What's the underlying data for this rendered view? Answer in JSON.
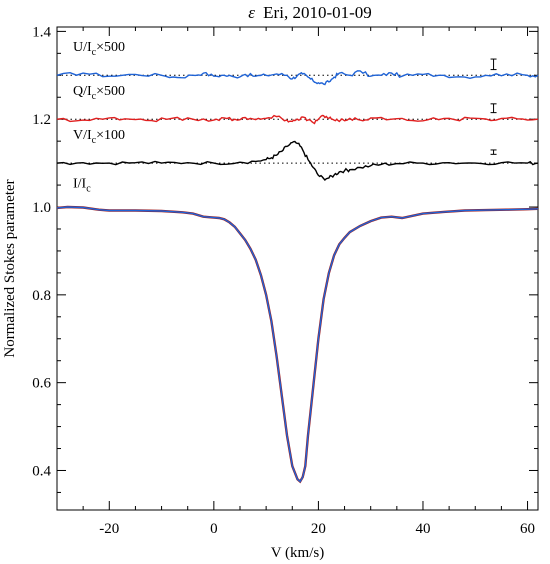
{
  "chart_data": {
    "type": "line",
    "title_symbol": "ε",
    "title_rest": "Eri, 2010-01-09",
    "xlabel": "V (km/s)",
    "ylabel": "Normalized Stokes parameter",
    "xlim": [
      -30,
      62
    ],
    "ylim": [
      0.31,
      1.41
    ],
    "x_ticks": [
      -20,
      0,
      20,
      40,
      60
    ],
    "y_ticks": [
      0.4,
      0.6,
      0.8,
      1.0,
      1.2,
      1.4
    ],
    "y_tick_labels": [
      "0.4",
      "0.6",
      "0.8",
      "1.0",
      "1.2",
      "1.4"
    ],
    "grid": false,
    "series": [
      {
        "label_main": "U/I",
        "label_sub": "c",
        "label_suffix": "×500",
        "color": "#1f63d6",
        "baseline": 1.3,
        "error_bar": {
          "x": 53.5,
          "y": 1.325,
          "half_height": 0.012
        },
        "x": [
          -30,
          -25,
          -20,
          -15,
          -10,
          -7,
          -4,
          -2,
          0,
          2,
          4,
          6,
          8,
          10,
          12,
          14,
          15,
          16,
          17,
          18,
          19,
          20,
          21,
          22,
          23,
          24,
          26,
          28,
          30,
          32,
          34,
          36,
          40,
          44,
          48,
          52,
          56,
          60,
          62
        ],
        "y": [
          1.3,
          1.305,
          1.298,
          1.302,
          1.3,
          1.295,
          1.3,
          1.305,
          1.298,
          1.3,
          1.296,
          1.302,
          1.298,
          1.3,
          1.303,
          1.3,
          1.292,
          1.3,
          1.303,
          1.296,
          1.287,
          1.283,
          1.28,
          1.285,
          1.296,
          1.305,
          1.3,
          1.31,
          1.298,
          1.3,
          1.305,
          1.298,
          1.302,
          1.3,
          1.296,
          1.3,
          1.303,
          1.3,
          1.3
        ]
      },
      {
        "label_main": "Q/I",
        "label_sub": "c",
        "label_suffix": "×500",
        "color": "#e01f1f",
        "baseline": 1.2,
        "error_bar": {
          "x": 53.5,
          "y": 1.225,
          "half_height": 0.01
        },
        "x": [
          -30,
          -25,
          -20,
          -16,
          -12,
          -8,
          -4,
          0,
          2,
          4,
          6,
          8,
          10,
          12,
          14,
          15,
          16,
          17,
          18,
          19,
          20,
          21,
          22,
          23,
          24,
          26,
          28,
          30,
          34,
          38,
          42,
          46,
          50,
          54,
          58,
          62
        ],
        "y": [
          1.2,
          1.198,
          1.203,
          1.2,
          1.197,
          1.202,
          1.2,
          1.198,
          1.203,
          1.2,
          1.204,
          1.199,
          1.202,
          1.206,
          1.198,
          1.195,
          1.2,
          1.205,
          1.198,
          1.192,
          1.2,
          1.208,
          1.202,
          1.198,
          1.195,
          1.202,
          1.198,
          1.203,
          1.2,
          1.197,
          1.203,
          1.199,
          1.202,
          1.198,
          1.201,
          1.2
        ]
      },
      {
        "label_main": "V/I",
        "label_sub": "c",
        "label_suffix": "×100",
        "color": "#000000",
        "baseline": 1.1,
        "error_bar": {
          "x": 53.5,
          "y": 1.125,
          "half_height": 0.005
        },
        "x": [
          -30,
          -25,
          -20,
          -15,
          -10,
          -5,
          0,
          5,
          8,
          10,
          11,
          12,
          13,
          14,
          15,
          16,
          17,
          18,
          19,
          20,
          21,
          22,
          23,
          24,
          25,
          26,
          28,
          30,
          32,
          35,
          40,
          45,
          50,
          55,
          60,
          62
        ],
        "y": [
          1.1,
          1.101,
          1.1,
          1.101,
          1.1,
          1.101,
          1.1,
          1.102,
          1.104,
          1.108,
          1.112,
          1.118,
          1.127,
          1.138,
          1.147,
          1.145,
          1.13,
          1.108,
          1.09,
          1.072,
          1.065,
          1.066,
          1.073,
          1.08,
          1.083,
          1.085,
          1.09,
          1.094,
          1.097,
          1.099,
          1.1,
          1.101,
          1.1,
          1.101,
          1.1,
          1.1
        ]
      },
      {
        "label_main": "I/I",
        "label_sub": "c",
        "label_suffix": "",
        "color": "#1f63d6",
        "model_color": "#a01a1a",
        "x": [
          -30,
          -28,
          -25,
          -22,
          -20,
          -15,
          -10,
          -6,
          -4,
          -2,
          0,
          1,
          2,
          3,
          4,
          5,
          6,
          7,
          8,
          9,
          10,
          11,
          12,
          13,
          14,
          15,
          16,
          16.5,
          17,
          17.5,
          18,
          19,
          20,
          21,
          22,
          23,
          24,
          25,
          26,
          28,
          30,
          32,
          34,
          36,
          38,
          40,
          44,
          48,
          52,
          56,
          60,
          62
        ],
        "y": [
          0.998,
          1.0,
          0.999,
          0.994,
          0.992,
          0.992,
          0.991,
          0.988,
          0.985,
          0.978,
          0.976,
          0.975,
          0.972,
          0.965,
          0.955,
          0.94,
          0.925,
          0.905,
          0.88,
          0.845,
          0.8,
          0.74,
          0.66,
          0.57,
          0.48,
          0.41,
          0.38,
          0.375,
          0.385,
          0.41,
          0.48,
          0.59,
          0.7,
          0.79,
          0.85,
          0.89,
          0.915,
          0.93,
          0.943,
          0.957,
          0.968,
          0.976,
          0.978,
          0.975,
          0.98,
          0.985,
          0.989,
          0.992,
          0.993,
          0.994,
          0.995,
          0.996
        ]
      }
    ]
  }
}
